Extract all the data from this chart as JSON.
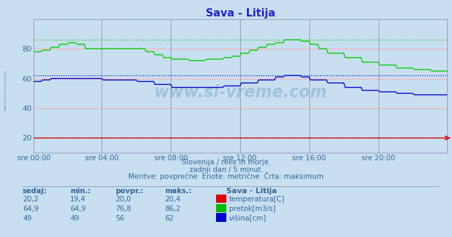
{
  "title": "Sava - Litija",
  "title_color": "#2222cc",
  "bg_color": "#c8dff0",
  "plot_bg_color": "#c8dff0",
  "grid_color_h": "#ffaaaa",
  "grid_color_v": "#9999bb",
  "text_color": "#336699",
  "ylim": [
    10,
    100
  ],
  "yticks": [
    20,
    40,
    60,
    80
  ],
  "x_labels": [
    "sre 00:00",
    "sre 04:00",
    "sre 08:00",
    "sre 12:00",
    "sre 16:00",
    "sre 20:00"
  ],
  "x_ticks_norm": [
    0.0,
    0.167,
    0.333,
    0.5,
    0.667,
    0.833
  ],
  "total_points": 288,
  "watermark": "www.si-vreme.com",
  "subtitle1": "Slovenija / reke in morje.",
  "subtitle2": "zadnji dan / 5 minut.",
  "subtitle3": "Meritve: povprečne  Enote: metrične  Črta: maksimum",
  "legend_title": "Sava - Litija",
  "legend_items": [
    {
      "label": "temperatura[C]",
      "color": "#dd0000"
    },
    {
      "label": "pretok[m3/s]",
      "color": "#00bb00"
    },
    {
      "label": "višina[cm]",
      "color": "#0000cc"
    }
  ],
  "table_headers": [
    "sedaj:",
    "min.:",
    "povpr.:",
    "maks.:"
  ],
  "table_data": [
    [
      "20,2",
      "19,4",
      "20,0",
      "20,4"
    ],
    [
      "64,9",
      "64,9",
      "76,8",
      "86,2"
    ],
    [
      "49",
      "49",
      "56",
      "62"
    ]
  ],
  "max_temp": 20.4,
  "max_pretok": 86.2,
  "max_visina": 62,
  "line_color_temp": "#dd0000",
  "line_color_pretok": "#00cc00",
  "line_color_visina": "#0000cc"
}
